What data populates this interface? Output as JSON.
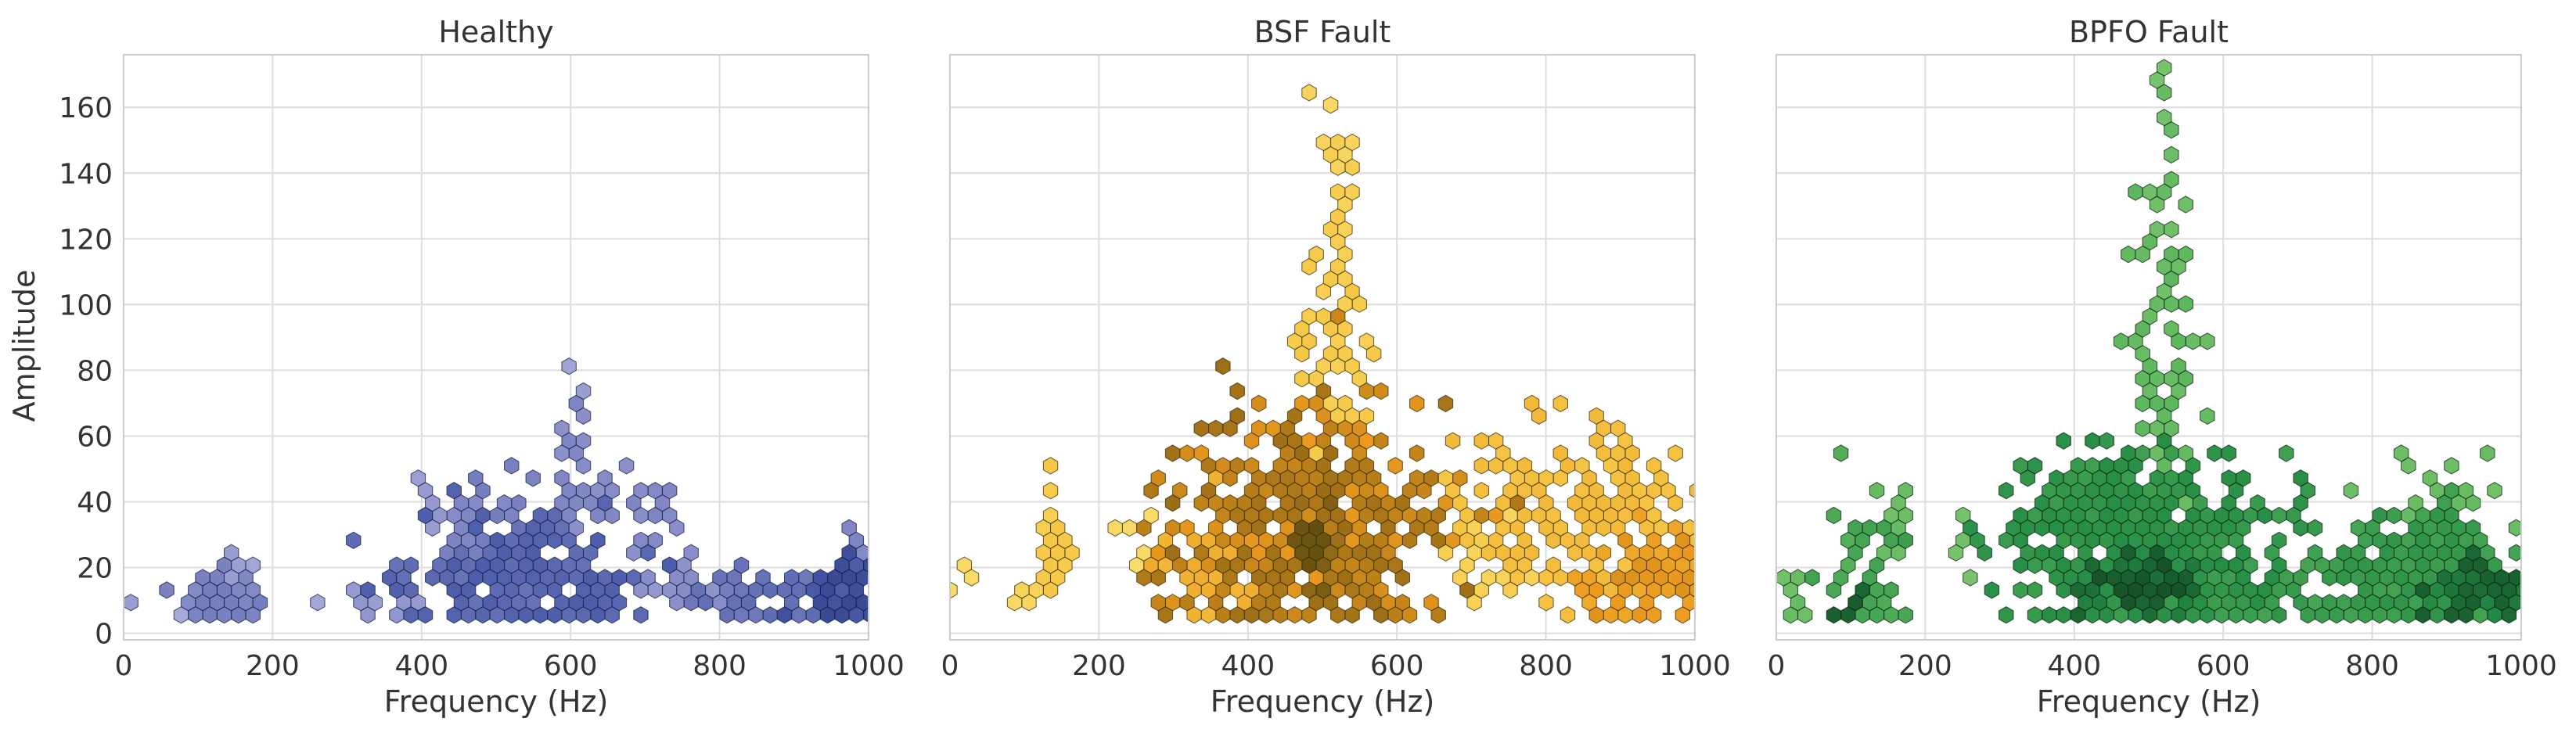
{
  "figure": {
    "ylabel": "Amplitude"
  },
  "chart_data": [
    {
      "type": "heatmap",
      "subtype": "hexbin",
      "title": "Healthy",
      "xlabel": "Frequency (Hz)",
      "ylabel": "Amplitude",
      "xlim": [
        0,
        1000
      ],
      "ylim": [
        -2,
        176
      ],
      "xticks": [
        0,
        200,
        400,
        600,
        800,
        1000
      ],
      "yticks": [
        0,
        20,
        40,
        60,
        80,
        100,
        120,
        140,
        160
      ],
      "grid": true,
      "colormap": [
        "#c6c6e8",
        "#8a8fc8",
        "#4a5aa8",
        "#1f2f7a"
      ],
      "clusters": [
        {
          "cx": 0,
          "cy": 10,
          "sx": 8,
          "sy": 2,
          "n": 5,
          "peak": 0.3
        },
        {
          "cx": 130,
          "cy": 11,
          "sx": 28,
          "sy": 4,
          "n": 35,
          "peak": 0.45
        },
        {
          "cx": 150,
          "cy": 20,
          "sx": 10,
          "sy": 3,
          "n": 8,
          "peak": 0.25
        },
        {
          "cx": 70,
          "cy": 5,
          "sx": 6,
          "sy": 1,
          "n": 2,
          "peak": 0.2
        },
        {
          "cx": 260,
          "cy": 9,
          "sx": 6,
          "sy": 2,
          "n": 2,
          "peak": 0.2
        },
        {
          "cx": 360,
          "cy": 10,
          "sx": 25,
          "sy": 4,
          "n": 15,
          "peak": 0.3
        },
        {
          "cx": 540,
          "cy": 16,
          "sx": 75,
          "sy": 9,
          "n": 160,
          "peak": 0.65
        },
        {
          "cx": 490,
          "cy": 30,
          "sx": 30,
          "sy": 9,
          "n": 45,
          "peak": 0.45
        },
        {
          "cx": 410,
          "cy": 38,
          "sx": 8,
          "sy": 6,
          "n": 8,
          "peak": 0.3
        },
        {
          "cx": 600,
          "cy": 50,
          "sx": 12,
          "sy": 9,
          "n": 22,
          "peak": 0.4
        },
        {
          "cx": 600,
          "cy": 70,
          "sx": 5,
          "sy": 5,
          "n": 4,
          "peak": 0.25
        },
        {
          "cx": 680,
          "cy": 36,
          "sx": 40,
          "sy": 8,
          "n": 30,
          "peak": 0.4
        },
        {
          "cx": 760,
          "cy": 12,
          "sx": 35,
          "sy": 3,
          "n": 25,
          "peak": 0.35
        },
        {
          "cx": 850,
          "cy": 11,
          "sx": 40,
          "sy": 5,
          "n": 60,
          "peak": 0.55
        },
        {
          "cx": 960,
          "cy": 12,
          "sx": 25,
          "sy": 6,
          "n": 70,
          "peak": 0.8
        },
        {
          "cx": 985,
          "cy": 26,
          "sx": 10,
          "sy": 5,
          "n": 8,
          "peak": 0.4
        }
      ]
    },
    {
      "type": "heatmap",
      "subtype": "hexbin",
      "title": "BSF Fault",
      "xlabel": "Frequency (Hz)",
      "ylabel": "",
      "xlim": [
        0,
        1000
      ],
      "ylim": [
        -2,
        176
      ],
      "xticks": [
        0,
        200,
        400,
        600,
        800,
        1000
      ],
      "yticks": [
        0,
        20,
        40,
        60,
        80,
        100,
        120,
        140,
        160
      ],
      "grid": true,
      "colormap": [
        "#fbef8f",
        "#f7c948",
        "#eb9a1e",
        "#5a4a10"
      ],
      "clusters": [
        {
          "cx": 15,
          "cy": 16,
          "sx": 6,
          "sy": 4,
          "n": 4,
          "peak": 0.2
        },
        {
          "cx": 140,
          "cy": 22,
          "sx": 12,
          "sy": 10,
          "n": 25,
          "peak": 0.35
        },
        {
          "cx": 110,
          "cy": 11,
          "sx": 15,
          "sy": 2,
          "n": 8,
          "peak": 0.25
        },
        {
          "cx": 240,
          "cy": 32,
          "sx": 15,
          "sy": 7,
          "n": 8,
          "peak": 0.2
        },
        {
          "cx": 360,
          "cy": 20,
          "sx": 45,
          "sy": 10,
          "n": 70,
          "peak": 0.55
        },
        {
          "cx": 480,
          "cy": 32,
          "sx": 85,
          "sy": 18,
          "n": 420,
          "peak": 0.85
        },
        {
          "cx": 490,
          "cy": 26,
          "sx": 15,
          "sy": 6,
          "n": 40,
          "peak": 0.98
        },
        {
          "cx": 510,
          "cy": 80,
          "sx": 25,
          "sy": 20,
          "n": 55,
          "peak": 0.35
        },
        {
          "cx": 520,
          "cy": 120,
          "sx": 12,
          "sy": 18,
          "n": 20,
          "peak": 0.3
        },
        {
          "cx": 525,
          "cy": 155,
          "sx": 15,
          "sy": 10,
          "n": 5,
          "peak": 0.25
        },
        {
          "cx": 830,
          "cy": 38,
          "sx": 90,
          "sy": 14,
          "n": 190,
          "peak": 0.45
        },
        {
          "cx": 940,
          "cy": 15,
          "sx": 45,
          "sy": 7,
          "n": 90,
          "peak": 0.7
        },
        {
          "cx": 720,
          "cy": 22,
          "sx": 25,
          "sy": 8,
          "n": 25,
          "peak": 0.3
        }
      ]
    },
    {
      "type": "heatmap",
      "subtype": "hexbin",
      "title": "BPFO Fault",
      "xlabel": "Frequency (Hz)",
      "ylabel": "",
      "xlim": [
        0,
        1000
      ],
      "ylim": [
        -2,
        176
      ],
      "xticks": [
        0,
        200,
        400,
        600,
        800,
        1000
      ],
      "yticks": [
        0,
        20,
        40,
        60,
        80,
        100,
        120,
        140,
        160
      ],
      "grid": true,
      "colormap": [
        "#a3d385",
        "#5fb85e",
        "#238b45",
        "#103a1c"
      ],
      "clusters": [
        {
          "cx": 15,
          "cy": 9,
          "sx": 10,
          "sy": 5,
          "n": 8,
          "peak": 0.3
        },
        {
          "cx": 120,
          "cy": 18,
          "sx": 25,
          "sy": 12,
          "n": 40,
          "peak": 0.5
        },
        {
          "cx": 100,
          "cy": 8,
          "sx": 8,
          "sy": 2,
          "n": 8,
          "peak": 0.9
        },
        {
          "cx": 160,
          "cy": 35,
          "sx": 10,
          "sy": 10,
          "n": 15,
          "peak": 0.3
        },
        {
          "cx": 250,
          "cy": 28,
          "sx": 10,
          "sy": 8,
          "n": 6,
          "peak": 0.25
        },
        {
          "cx": 490,
          "cy": 25,
          "sx": 90,
          "sy": 14,
          "n": 520,
          "peak": 0.65
        },
        {
          "cx": 490,
          "cy": 15,
          "sx": 35,
          "sy": 4,
          "n": 80,
          "peak": 0.9
        },
        {
          "cx": 520,
          "cy": 80,
          "sx": 25,
          "sy": 22,
          "n": 55,
          "peak": 0.35
        },
        {
          "cx": 525,
          "cy": 125,
          "sx": 12,
          "sy": 20,
          "n": 20,
          "peak": 0.3
        },
        {
          "cx": 520,
          "cy": 160,
          "sx": 6,
          "sy": 6,
          "n": 4,
          "peak": 0.25
        },
        {
          "cx": 840,
          "cy": 18,
          "sx": 80,
          "sy": 9,
          "n": 220,
          "peak": 0.6
        },
        {
          "cx": 950,
          "cy": 13,
          "sx": 30,
          "sy": 4,
          "n": 80,
          "peak": 0.85
        },
        {
          "cx": 880,
          "cy": 42,
          "sx": 60,
          "sy": 6,
          "n": 20,
          "peak": 0.3
        }
      ]
    }
  ]
}
